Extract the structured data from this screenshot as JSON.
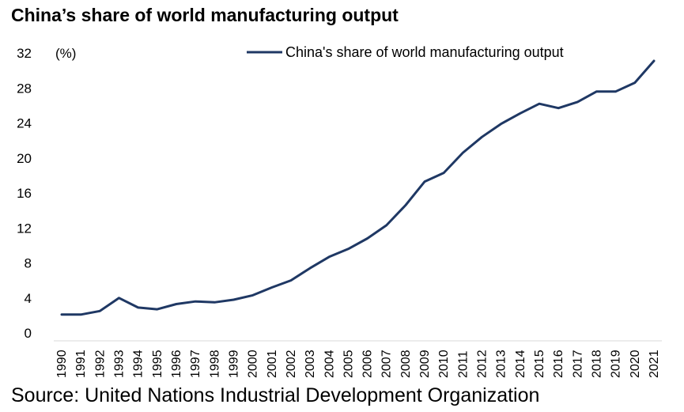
{
  "title": "China’s share of world manufacturing output",
  "source": "Source: United Nations Industrial Development Organization",
  "chart_data": {
    "type": "line",
    "title": "China’s share of world manufacturing output",
    "xlabel": "",
    "ylabel": "(%)",
    "ylim": [
      0,
      32
    ],
    "yticks": [
      0,
      4,
      8,
      12,
      16,
      20,
      24,
      28,
      32
    ],
    "grid": false,
    "legend_position": "top",
    "x": [
      1990,
      1991,
      1992,
      1993,
      1994,
      1995,
      1996,
      1997,
      1998,
      1999,
      2000,
      2001,
      2002,
      2003,
      2004,
      2005,
      2006,
      2007,
      2008,
      2009,
      2010,
      2011,
      2012,
      2013,
      2014,
      2015,
      2016,
      2017,
      2018,
      2019,
      2020,
      2021
    ],
    "series": [
      {
        "name": "China's share of world manufacturing output",
        "color": "#1f3864",
        "values": [
          2.1,
          2.1,
          2.5,
          4.0,
          2.9,
          2.7,
          3.3,
          3.6,
          3.5,
          3.8,
          4.3,
          5.2,
          6.0,
          7.4,
          8.7,
          9.6,
          10.8,
          12.3,
          14.6,
          17.3,
          18.3,
          20.6,
          22.4,
          23.9,
          25.1,
          26.2,
          25.7,
          26.4,
          27.6,
          27.6,
          28.6,
          31.1
        ]
      }
    ]
  }
}
